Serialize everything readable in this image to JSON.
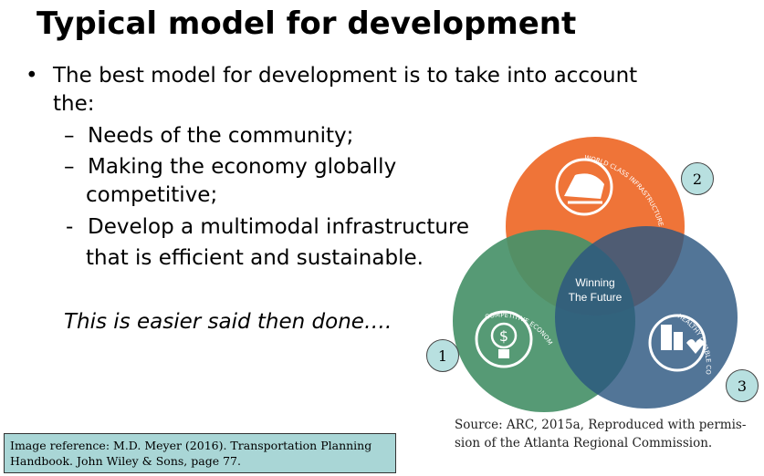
{
  "slide": {
    "title": "Typical model for development",
    "bullet_symbol": "•",
    "bullet_line1": "The best model for development is to take into account",
    "bullet_line2": "the:",
    "sub1_dash": "–",
    "sub1_text": "Needs of the community;",
    "sub2_dash": "–",
    "sub2_line1": "Making the economy globally",
    "sub2_line2": "competitive;",
    "sub3_dash": "-",
    "sub3_line1": "Develop a multimodal infrastructure",
    "sub3_line2": "that is efficient and sustainable.",
    "italic_note": "This is easier said then done…."
  },
  "venn": {
    "center_line1": "Winning",
    "center_line2": "The Future",
    "top_arc": "WORLD CLASS INFRASTRUCTURE",
    "left_arc": "COMPETITIVE ECONOMY",
    "right_arc": "HEALTHY LIVABLE COMMUNITIES",
    "label_1": "1",
    "label_2": "2",
    "label_3": "3",
    "colors": {
      "orange": "#ee6a2a",
      "green": "#3a8a5e",
      "blue": "#1c4a78"
    }
  },
  "source": {
    "line1": "Source: ARC, 2015a, Reproduced with permis-",
    "line2": "sion of the Atlanta Regional Commission."
  },
  "reference": {
    "line1": "Image reference: M.D. Meyer (2016). Transportation Planning",
    "line2": "Handbook. John Wiley & Sons, page 77."
  }
}
